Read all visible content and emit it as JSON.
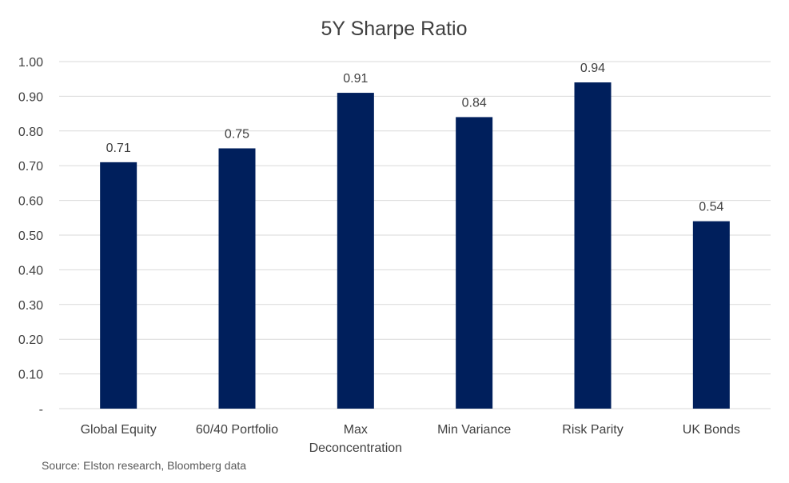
{
  "chart_data": {
    "type": "bar",
    "title": "5Y Sharpe Ratio",
    "categories": [
      "Global Equity",
      "60/40 Portfolio",
      "Max Deconcentration",
      "Min Variance",
      "Risk Parity",
      "UK Bonds"
    ],
    "category_lines": [
      [
        "Global Equity"
      ],
      [
        "60/40 Portfolio"
      ],
      [
        "Max",
        "Deconcentration"
      ],
      [
        "Min Variance"
      ],
      [
        "Risk Parity"
      ],
      [
        "UK Bonds"
      ]
    ],
    "values": [
      0.71,
      0.75,
      0.91,
      0.84,
      0.94,
      0.54
    ],
    "data_labels": [
      "0.71",
      "0.75",
      "0.91",
      "0.84",
      "0.94",
      "0.54"
    ],
    "ylim": [
      0,
      1.0
    ],
    "yticks": [
      0,
      0.1,
      0.2,
      0.3,
      0.4,
      0.5,
      0.6,
      0.7,
      0.8,
      0.9,
      1.0
    ],
    "ytick_labels": [
      "-",
      "0.10",
      "0.20",
      "0.30",
      "0.40",
      "0.50",
      "0.60",
      "0.70",
      "0.80",
      "0.90",
      "1.00"
    ],
    "xlabel": "",
    "ylabel": "",
    "grid": true,
    "legend": "none",
    "bar_color": "#001f5c",
    "source": "Source: Elston research, Bloomberg data"
  }
}
